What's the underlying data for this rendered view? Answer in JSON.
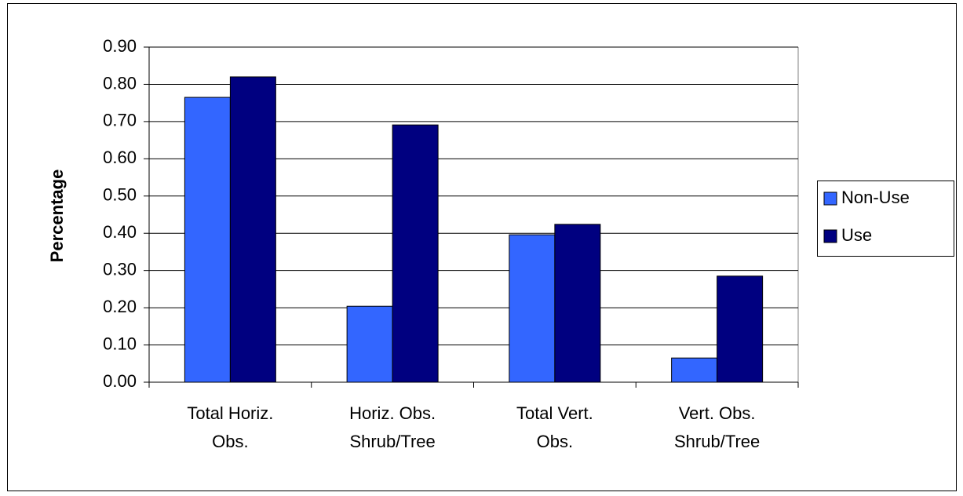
{
  "chart_data": {
    "type": "bar",
    "y_label": "Percentage",
    "categories": [
      "Total Horiz.\nObs.",
      "Horiz. Obs.\nShrub/Tree",
      "Total Vert.\nObs.",
      "Vert. Obs.\nShrub/Tree"
    ],
    "series": [
      {
        "name": "Non-Use",
        "color": "#3366ff",
        "values": [
          0.765,
          0.204,
          0.396,
          0.065
        ]
      },
      {
        "name": "Use",
        "color": "#000080",
        "values": [
          0.82,
          0.691,
          0.424,
          0.285
        ]
      }
    ],
    "ylim": [
      0,
      0.9
    ],
    "yticks": [
      {
        "value": 0,
        "label": "0.00"
      },
      {
        "value": 0.1,
        "label": "0.10"
      },
      {
        "value": 0.2,
        "label": "0.20"
      },
      {
        "value": 0.3,
        "label": "0.30"
      },
      {
        "value": 0.4,
        "label": "0.40"
      },
      {
        "value": 0.5,
        "label": "0.50"
      },
      {
        "value": 0.6,
        "label": "0.60"
      },
      {
        "value": 0.7,
        "label": "0.70"
      },
      {
        "value": 0.8,
        "label": "0.80"
      },
      {
        "value": 0.9,
        "label": "0.90"
      }
    ],
    "grid": true,
    "legend": "right"
  }
}
